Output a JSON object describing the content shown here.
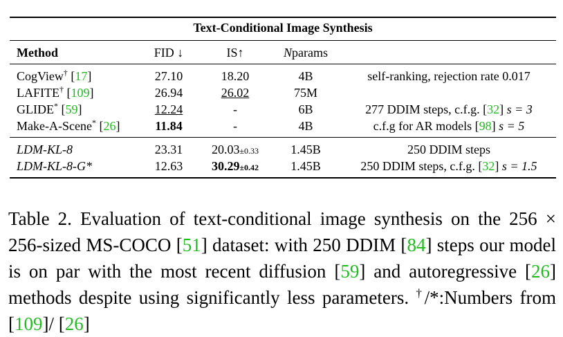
{
  "table": {
    "title": "Text-Conditional Image Synthesis",
    "headers": {
      "method": "Method",
      "fid": "FID ↓",
      "is": "IS↑",
      "nparams_n": "N",
      "nparams_rest": "params"
    },
    "group1": [
      {
        "method": "CogView",
        "mark": "†",
        "ref": "17",
        "fid": "27.10",
        "is": "18.20",
        "nparams": "4B",
        "notes": "self-ranking, rejection rate 0.017"
      },
      {
        "method": "LAFITE",
        "mark": "†",
        "ref": "109",
        "fid": "26.94",
        "is": "26.02",
        "nparams": "75M",
        "notes": ""
      },
      {
        "method": "GLIDE",
        "mark": "*",
        "ref": "59",
        "fid": "12.24",
        "is": "-",
        "nparams": "6B",
        "notes_pre": "277 DDIM steps, c.f.g. [",
        "notes_ref": "32",
        "notes_post": "]",
        "notes_math": "s = 3"
      },
      {
        "method": "Make-A-Scene",
        "mark": "*",
        "ref": "26",
        "fid": "11.84",
        "is": "-",
        "nparams": "4B",
        "notes_pre": "c.f.g for AR models [",
        "notes_ref": "98",
        "notes_post": "]",
        "notes_math": "s = 5"
      }
    ],
    "group2": [
      {
        "method": "LDM-KL-8",
        "fid": "23.31",
        "is": "20.03",
        "is_pm": "±0.33",
        "nparams": "1.45B",
        "notes": "250 DDIM steps"
      },
      {
        "method": "LDM-KL-8-G*",
        "fid": "12.63",
        "is": "30.29",
        "is_pm": "±0.42",
        "nparams": "1.45B",
        "notes_pre": "250 DDIM steps, c.f.g. [",
        "notes_ref": "32",
        "notes_post": "]",
        "notes_math": "s = 1.5"
      }
    ]
  },
  "caption": {
    "p1": "Table 2.   Evaluation of text-conditional image synthesis on the 256 × 256-sized MS-COCO [",
    "r1": "51",
    "p2": "] dataset:  with 250 DDIM [",
    "r2": "84",
    "p3": "] steps our model is on par with the most recent diffusion [",
    "r3": "59",
    "p4": "] and autoregressive [",
    "r4": "26",
    "p5": "] methods despite using significantly less parameters. ",
    "sup": "†",
    "p6": "/*:Numbers from [",
    "r5": "109",
    "p7": "]/ [",
    "r6": "26",
    "p8": "]"
  }
}
